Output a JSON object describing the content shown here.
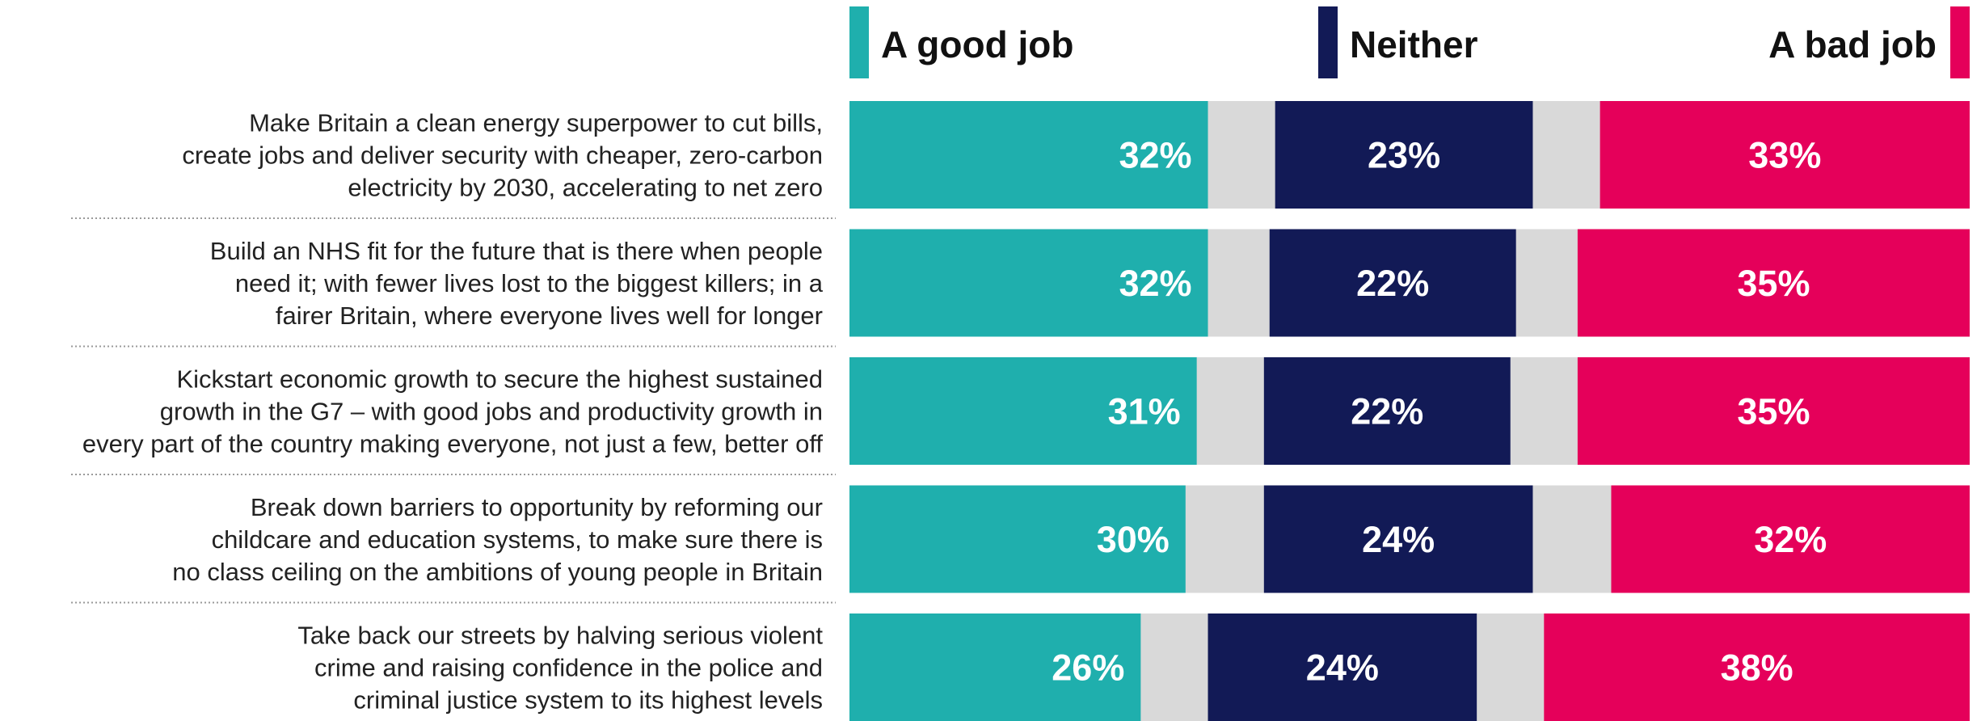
{
  "chart_data": {
    "type": "bar",
    "subtype": "diverging-stacked-horizontal",
    "legend": {
      "placement": "top",
      "entries": [
        {
          "key": "good",
          "label": "A good job",
          "color": "#1FAFAD"
        },
        {
          "key": "neither",
          "label": "Neither",
          "color": "#121A56"
        },
        {
          "key": "bad",
          "label": "A bad job",
          "color": "#E5005A"
        }
      ]
    },
    "gap_color": "#D9D9D9",
    "categories": [
      "Make Britain a clean energy superpower to cut bills, create jobs and deliver security with cheaper, zero-carbon electricity by 2030, accelerating to net zero",
      "Build an NHS fit for the future that is there when people need it; with fewer lives lost to the biggest killers; in a fairer Britain, where everyone lives well for longer",
      "Kickstart economic growth to secure the highest sustained growth in the G7 – with good jobs and productivity growth in every part of the country making everyone, not just a few, better off",
      "Break down barriers to opportunity by reforming our childcare and education systems, to make sure there is no class ceiling on the ambitions of young people in Britain",
      "Take back our streets by halving serious violent crime and raising confidence in the police and criminal justice system to its highest levels"
    ],
    "category_lines": [
      [
        "Make Britain a clean energy superpower to cut bills,",
        "create jobs and deliver security with cheaper, zero-carbon",
        "electricity by 2030, accelerating to net zero"
      ],
      [
        "Build an NHS fit for the future that is there when people",
        "need it; with fewer lives lost to the biggest killers; in a",
        "fairer Britain, where everyone lives well for longer"
      ],
      [
        "Kickstart economic growth to secure the highest sustained",
        "growth in the G7 – with good jobs and productivity growth in",
        "every part of the country making everyone, not just a few, better off"
      ],
      [
        "Break down barriers to opportunity by reforming our",
        "childcare and education systems, to make sure there is",
        "no class ceiling on the ambitions of young people in Britain"
      ],
      [
        "Take back our streets by halving serious violent",
        "crime and raising confidence in the police and",
        "criminal justice system to its highest levels"
      ]
    ],
    "series": [
      {
        "key": "good",
        "values": [
          32,
          32,
          31,
          30,
          26
        ],
        "labels": [
          "32%",
          "32%",
          "31%",
          "30%",
          "26%"
        ]
      },
      {
        "key": "neither",
        "values": [
          23,
          22,
          22,
          24,
          24
        ],
        "labels": [
          "23%",
          "22%",
          "22%",
          "24%",
          "24%"
        ]
      },
      {
        "key": "bad",
        "values": [
          33,
          35,
          35,
          32,
          38
        ],
        "labels": [
          "33%",
          "35%",
          "35%",
          "32%",
          "38%"
        ]
      }
    ],
    "unit": "%",
    "xlim": [
      0,
      100
    ],
    "grid": false
  }
}
